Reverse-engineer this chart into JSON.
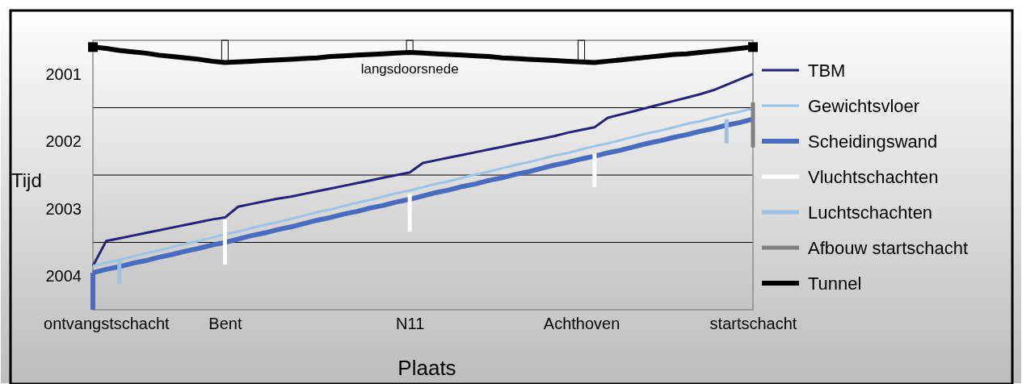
{
  "chart_data": {
    "type": "line",
    "xlabel": "Plaats",
    "ylabel": "Tijd",
    "categories": [
      null,
      "ontvangstschacht",
      null,
      null,
      null,
      null,
      null,
      null,
      null,
      null,
      "Bent",
      null,
      null,
      null,
      null,
      null,
      null,
      null,
      null,
      null,
      null,
      null,
      null,
      null,
      "N11",
      null,
      null,
      null,
      null,
      null,
      null,
      null,
      null,
      null,
      null,
      null,
      null,
      "Achthoven",
      null,
      null,
      null,
      null,
      null,
      null,
      null,
      null,
      null,
      null,
      null,
      null,
      "startschacht"
    ],
    "ylim": [
      2005,
      2001
    ],
    "yticks": [
      {
        "value": 2001.5,
        "label": "2001"
      },
      {
        "value": 2002.5,
        "label": "2002"
      },
      {
        "value": 2003.5,
        "label": "2003"
      },
      {
        "value": 2004.5,
        "label": "2004"
      }
    ],
    "ref_lines": [
      {
        "axis": "y",
        "value": 2002,
        "color": "#000000"
      },
      {
        "axis": "y",
        "value": 2003,
        "color": "#000000"
      },
      {
        "axis": "y",
        "value": 2004,
        "color": "#000000"
      }
    ],
    "legend": "right",
    "grid": false,
    "marker": "none",
    "annotations": [
      {
        "text": "langsdoorsnede",
        "x": "N11",
        "y": 2001.18
      }
    ],
    "series": [
      {
        "name": "TBM",
        "color": "#23237a",
        "values": [
          2004.35,
          2003.98,
          2003.94,
          2003.9,
          2003.86,
          2003.82,
          2003.78,
          2003.74,
          2003.7,
          2003.66,
          2003.63,
          2003.47,
          2003.43,
          2003.39,
          2003.35,
          2003.32,
          2003.28,
          2003.24,
          2003.2,
          2003.16,
          2003.12,
          2003.08,
          2003.04,
          2003.0,
          2002.96,
          2002.82,
          2002.78,
          2002.74,
          2002.7,
          2002.66,
          2002.62,
          2002.58,
          2002.54,
          2002.5,
          2002.46,
          2002.42,
          2002.37,
          2002.33,
          2002.29,
          2002.15,
          2002.1,
          2002.05,
          2002.0,
          2001.95,
          2001.9,
          2001.85,
          2001.8,
          2001.74,
          2001.66,
          2001.58,
          2001.5
        ]
      },
      {
        "name": "Gewichtsvloer",
        "color": "#9dc3e6",
        "values": [
          2004.35,
          2004.3,
          2004.26,
          2004.21,
          2004.16,
          2004.12,
          2004.07,
          2004.02,
          2003.98,
          2003.93,
          2003.88,
          2003.84,
          2003.79,
          2003.74,
          2003.7,
          2003.65,
          2003.6,
          2003.55,
          2003.51,
          2003.46,
          2003.41,
          2003.37,
          2003.32,
          2003.27,
          2003.23,
          2003.18,
          2003.13,
          2003.09,
          2003.04,
          2002.99,
          2002.95,
          2002.9,
          2002.85,
          2002.81,
          2002.76,
          2002.71,
          2002.67,
          2002.62,
          2002.57,
          2002.53,
          2002.48,
          2002.43,
          2002.38,
          2002.34,
          2002.29,
          2002.24,
          2002.2,
          2002.15,
          2002.1,
          2002.06,
          2002.01
        ]
      },
      {
        "name": "Scheidingswand",
        "color": "#4a6cbf",
        "values": [
          2004.45,
          2004.4,
          2004.36,
          2004.31,
          2004.27,
          2004.22,
          2004.18,
          2004.13,
          2004.09,
          2004.04,
          2004.0,
          2003.95,
          2003.9,
          2003.86,
          2003.81,
          2003.77,
          2003.72,
          2003.67,
          2003.63,
          2003.58,
          2003.54,
          2003.49,
          2003.45,
          2003.4,
          2003.36,
          2003.31,
          2003.26,
          2003.22,
          2003.17,
          2003.13,
          2003.08,
          2003.04,
          2002.99,
          2002.95,
          2002.9,
          2002.85,
          2002.81,
          2002.76,
          2002.72,
          2002.67,
          2002.63,
          2002.58,
          2002.53,
          2002.49,
          2002.44,
          2002.4,
          2002.35,
          2002.31,
          2002.26,
          2002.22,
          2002.17
        ]
      },
      {
        "type": "bar",
        "color": "#4a6cbf",
        "values": [
          0.55,
          null,
          null,
          null,
          null,
          null,
          null,
          null,
          null,
          null,
          null,
          null,
          null,
          null,
          null,
          null,
          null,
          null,
          null,
          null,
          null,
          null,
          null,
          null,
          null,
          null,
          null,
          null,
          null,
          null,
          null,
          null,
          null,
          null,
          null,
          null,
          null,
          null,
          null,
          null,
          null,
          null,
          null,
          null,
          null,
          null,
          null,
          null,
          null,
          null,
          null
        ],
        "base": [
          2004.45,
          null,
          null,
          null,
          null,
          null,
          null,
          null,
          null,
          null,
          null,
          null,
          null,
          null,
          null,
          null,
          null,
          null,
          null,
          null,
          null,
          null,
          null,
          null,
          null,
          null,
          null,
          null,
          null,
          null,
          null,
          null,
          null,
          null,
          null,
          null,
          null,
          null,
          null,
          null,
          null,
          null,
          null,
          null,
          null,
          null,
          null,
          null,
          null,
          null,
          null
        ]
      },
      {
        "name": "Vluchtschachten",
        "type": "bar",
        "color": "#ffffff",
        "values": [
          null,
          null,
          null,
          null,
          null,
          null,
          null,
          null,
          null,
          null,
          0.67,
          null,
          null,
          null,
          null,
          null,
          null,
          null,
          null,
          null,
          null,
          null,
          null,
          null,
          0.56,
          null,
          null,
          null,
          null,
          null,
          null,
          null,
          null,
          null,
          null,
          null,
          null,
          null,
          0.5,
          null,
          null,
          null,
          null,
          null,
          null,
          null,
          null,
          null,
          null,
          null,
          null
        ],
        "base": [
          null,
          null,
          null,
          null,
          null,
          null,
          null,
          null,
          null,
          null,
          2003.66,
          null,
          null,
          null,
          null,
          null,
          null,
          null,
          null,
          null,
          null,
          null,
          null,
          null,
          2003.28,
          null,
          null,
          null,
          null,
          null,
          null,
          null,
          null,
          null,
          null,
          null,
          null,
          null,
          2002.68,
          null,
          null,
          null,
          null,
          null,
          null,
          null,
          null,
          null,
          null,
          null,
          null
        ]
      },
      {
        "name": "Luchtschachten",
        "type": "bar",
        "color": "#9dc3e6",
        "values": [
          null,
          null,
          0.36,
          null,
          null,
          null,
          null,
          null,
          null,
          null,
          null,
          null,
          null,
          null,
          null,
          null,
          null,
          null,
          null,
          null,
          null,
          null,
          null,
          null,
          null,
          null,
          null,
          null,
          null,
          null,
          null,
          null,
          null,
          null,
          null,
          null,
          null,
          null,
          null,
          null,
          null,
          null,
          null,
          null,
          null,
          null,
          null,
          null,
          0.36,
          null,
          null
        ],
        "base": [
          null,
          null,
          2004.26,
          null,
          null,
          null,
          null,
          null,
          null,
          null,
          null,
          null,
          null,
          null,
          null,
          null,
          null,
          null,
          null,
          null,
          null,
          null,
          null,
          null,
          null,
          null,
          null,
          null,
          null,
          null,
          null,
          null,
          null,
          null,
          null,
          null,
          null,
          null,
          null,
          null,
          null,
          null,
          null,
          null,
          null,
          null,
          null,
          null,
          2002.17,
          null,
          null
        ]
      },
      {
        "name": "Afbouw startschacht",
        "type": "bar",
        "color": "#808080",
        "values": [
          null,
          null,
          null,
          null,
          null,
          null,
          null,
          null,
          null,
          null,
          null,
          null,
          null,
          null,
          null,
          null,
          null,
          null,
          null,
          null,
          null,
          null,
          null,
          null,
          null,
          null,
          null,
          null,
          null,
          null,
          null,
          null,
          null,
          null,
          null,
          null,
          null,
          null,
          null,
          null,
          null,
          null,
          null,
          null,
          null,
          null,
          null,
          null,
          null,
          null,
          0.67
        ],
        "base": [
          null,
          null,
          null,
          null,
          null,
          null,
          null,
          null,
          null,
          null,
          null,
          null,
          null,
          null,
          null,
          null,
          null,
          null,
          null,
          null,
          null,
          null,
          null,
          null,
          null,
          null,
          null,
          null,
          null,
          null,
          null,
          null,
          null,
          null,
          null,
          null,
          null,
          null,
          null,
          null,
          null,
          null,
          null,
          null,
          null,
          null,
          null,
          null,
          null,
          null,
          2001.92
        ]
      },
      {
        "name": "Tunnel",
        "color": "#000000",
        "values": [
          2001.1,
          2001.12,
          2001.15,
          2001.17,
          2001.19,
          2001.22,
          2001.24,
          2001.26,
          2001.28,
          2001.31,
          2001.33,
          2001.32,
          2001.31,
          2001.3,
          2001.29,
          2001.28,
          2001.27,
          2001.26,
          2001.24,
          2001.23,
          2001.22,
          2001.21,
          2001.2,
          2001.19,
          2001.18,
          2001.19,
          2001.2,
          2001.21,
          2001.22,
          2001.23,
          2001.24,
          2001.26,
          2001.27,
          2001.28,
          2001.29,
          2001.3,
          2001.31,
          2001.32,
          2001.33,
          2001.31,
          2001.29,
          2001.27,
          2001.25,
          2001.23,
          2001.21,
          2001.2,
          2001.18,
          2001.16,
          2001.14,
          2001.12,
          2001.1
        ]
      }
    ]
  }
}
